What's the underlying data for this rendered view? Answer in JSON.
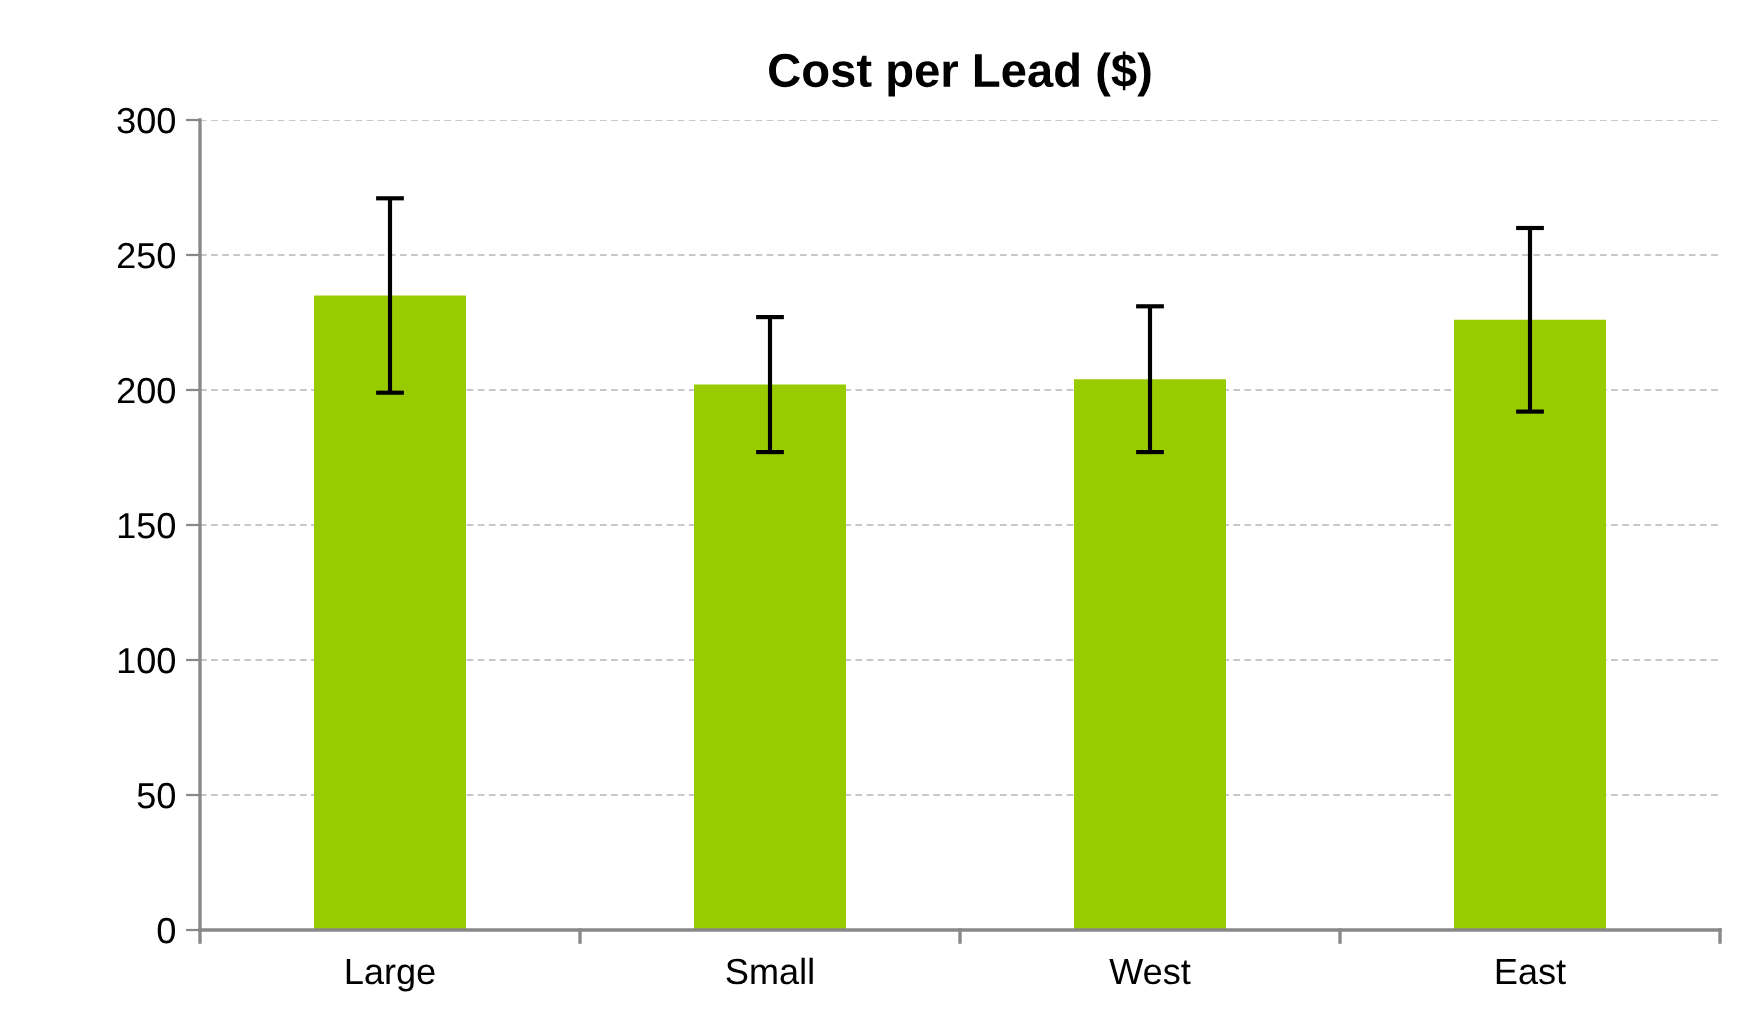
{
  "chart_data": {
    "type": "bar",
    "title": "Cost per Lead ($)",
    "categories": [
      "Large",
      "Small",
      "West",
      "East"
    ],
    "values": [
      235,
      202,
      204,
      226
    ],
    "errors": [
      36,
      25,
      27,
      34
    ],
    "color": "#99cc00",
    "ylim": [
      0,
      300
    ],
    "yticks": [
      0,
      50,
      100,
      150,
      200,
      250,
      300
    ],
    "grid": "y"
  }
}
